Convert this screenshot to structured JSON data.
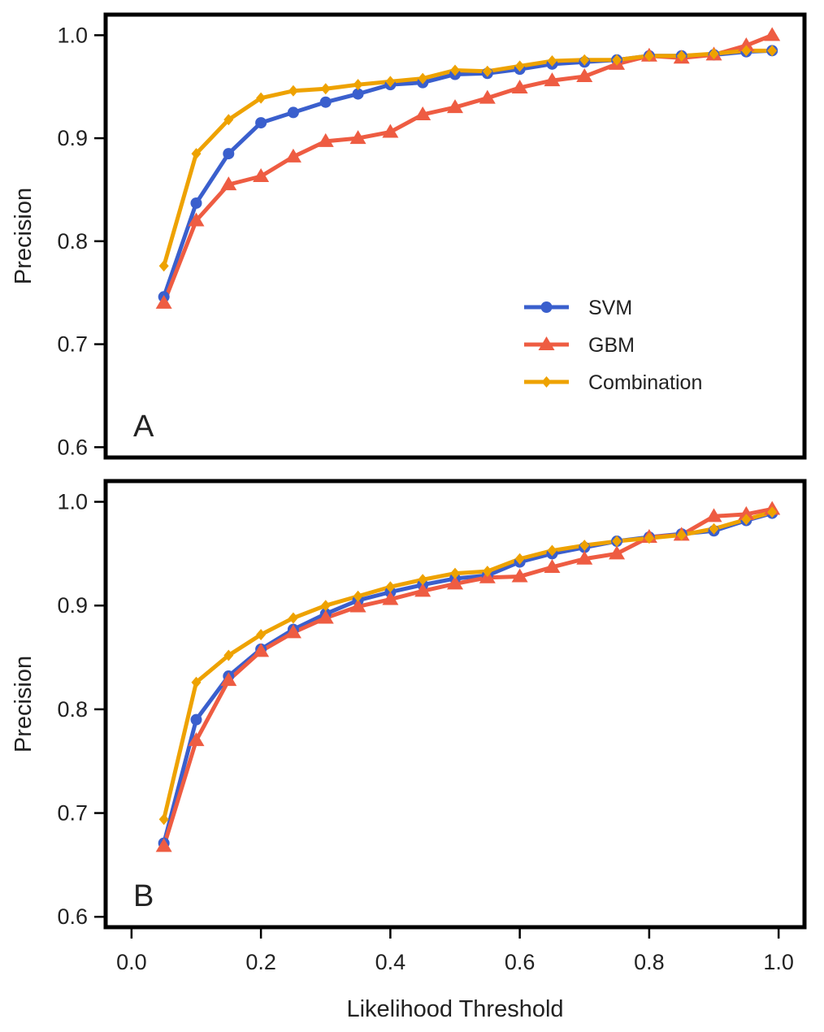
{
  "chart_data": [
    {
      "type": "line",
      "panel_label": "A",
      "xlabel": "",
      "ylabel": "Precision",
      "xlim": [
        -0.04,
        1.04
      ],
      "ylim": [
        0.59,
        1.02
      ],
      "y_ticks": [
        0.6,
        0.7,
        0.8,
        0.9,
        1.0
      ],
      "y_tick_labels": [
        "0.6",
        "0.7",
        "0.8",
        "0.9",
        "1.0"
      ],
      "x_ticks": [],
      "x_tick_labels": [],
      "grid": false,
      "legend": "right",
      "x": [
        0.05,
        0.1,
        0.15,
        0.2,
        0.25,
        0.3,
        0.35,
        0.4,
        0.45,
        0.5,
        0.55,
        0.6,
        0.65,
        0.7,
        0.75,
        0.8,
        0.85,
        0.9,
        0.95,
        0.99
      ],
      "series": [
        {
          "name": "SVM",
          "marker": "circle",
          "color": "#3a5fcd",
          "values": [
            0.746,
            0.837,
            0.885,
            0.915,
            0.925,
            0.935,
            0.943,
            0.952,
            0.954,
            0.962,
            0.963,
            0.967,
            0.972,
            0.974,
            0.976,
            0.98,
            0.98,
            0.981,
            0.984,
            0.985
          ]
        },
        {
          "name": "GBM",
          "marker": "triangle",
          "color": "#ee5c42",
          "values": [
            0.74,
            0.82,
            0.855,
            0.863,
            0.882,
            0.897,
            0.9,
            0.906,
            0.923,
            0.93,
            0.939,
            0.949,
            0.956,
            0.96,
            0.972,
            0.98,
            0.978,
            0.981,
            0.99,
            1.0
          ]
        },
        {
          "name": "Combination",
          "marker": "diamond",
          "color": "#eea200",
          "values": [
            0.776,
            0.885,
            0.918,
            0.939,
            0.946,
            0.948,
            0.952,
            0.955,
            0.958,
            0.966,
            0.965,
            0.97,
            0.975,
            0.976,
            0.976,
            0.98,
            0.98,
            0.982,
            0.985,
            0.985
          ]
        }
      ]
    },
    {
      "type": "line",
      "panel_label": "B",
      "xlabel": "Likelihood Threshold",
      "ylabel": "Precision",
      "xlim": [
        -0.04,
        1.04
      ],
      "ylim": [
        0.59,
        1.02
      ],
      "y_ticks": [
        0.6,
        0.7,
        0.8,
        0.9,
        1.0
      ],
      "y_tick_labels": [
        "0.6",
        "0.7",
        "0.8",
        "0.9",
        "1.0"
      ],
      "x_ticks": [
        0.0,
        0.2,
        0.4,
        0.6,
        0.8,
        1.0
      ],
      "x_tick_labels": [
        "0.0",
        "0.2",
        "0.4",
        "0.6",
        "0.8",
        "1.0"
      ],
      "grid": false,
      "legend": "none",
      "x": [
        0.05,
        0.1,
        0.15,
        0.2,
        0.25,
        0.3,
        0.35,
        0.4,
        0.45,
        0.5,
        0.55,
        0.6,
        0.65,
        0.7,
        0.75,
        0.8,
        0.85,
        0.9,
        0.95,
        0.99
      ],
      "series": [
        {
          "name": "SVM",
          "marker": "circle",
          "color": "#3a5fcd",
          "values": [
            0.671,
            0.79,
            0.832,
            0.858,
            0.877,
            0.892,
            0.905,
            0.913,
            0.92,
            0.926,
            0.929,
            0.942,
            0.95,
            0.956,
            0.962,
            0.966,
            0.969,
            0.972,
            0.982,
            0.989
          ]
        },
        {
          "name": "GBM",
          "marker": "triangle",
          "color": "#ee5c42",
          "values": [
            0.668,
            0.77,
            0.828,
            0.856,
            0.874,
            0.888,
            0.899,
            0.906,
            0.914,
            0.921,
            0.927,
            0.928,
            0.937,
            0.945,
            0.95,
            0.966,
            0.968,
            0.986,
            0.988,
            0.993
          ]
        },
        {
          "name": "Combination",
          "marker": "diamond",
          "color": "#eea200",
          "values": [
            0.694,
            0.826,
            0.852,
            0.872,
            0.888,
            0.9,
            0.909,
            0.918,
            0.925,
            0.931,
            0.933,
            0.945,
            0.953,
            0.958,
            0.962,
            0.965,
            0.968,
            0.974,
            0.983,
            0.99
          ]
        }
      ]
    }
  ]
}
